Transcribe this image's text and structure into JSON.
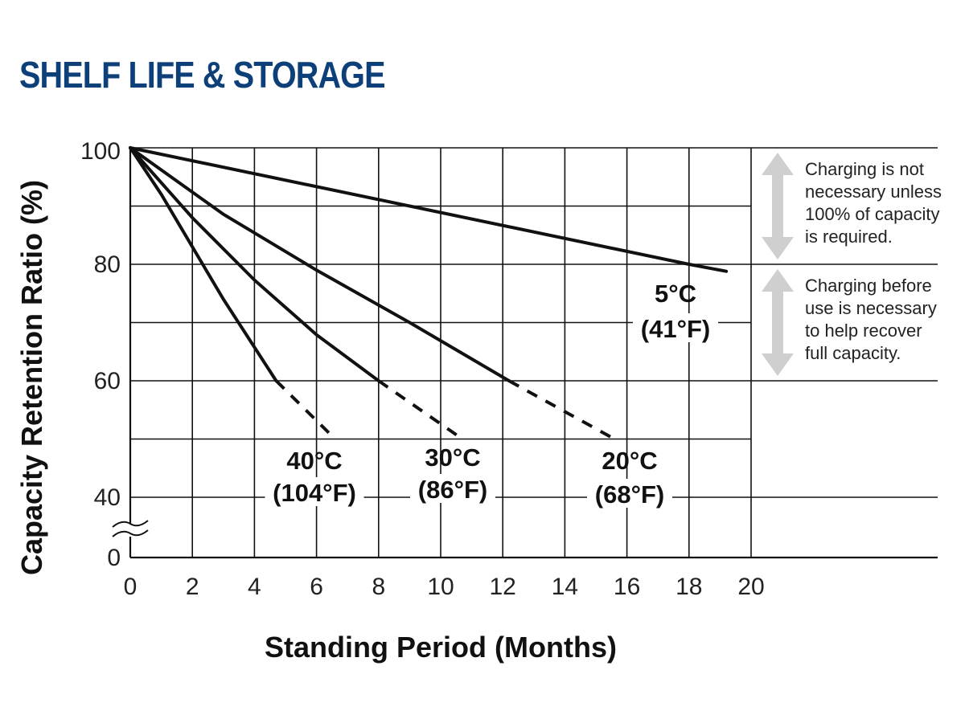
{
  "page": {
    "title": "SHELF LIFE & STORAGE",
    "title_color": "#0d3f78"
  },
  "chart_data": {
    "type": "line",
    "xlabel": "Standing Period (Months)",
    "ylabel": "Capacity Retention Ratio (%)",
    "x_ticks": [
      "0",
      "2",
      "4",
      "6",
      "8",
      "10",
      "12",
      "14",
      "16",
      "18",
      "20"
    ],
    "y_ticks": [
      "0",
      "40",
      "60",
      "80",
      "100"
    ],
    "xlim": [
      0,
      20
    ],
    "ylim": [
      40,
      100
    ],
    "y_axis_break": true,
    "grid": true,
    "series": [
      {
        "name": "5°C (41°F)",
        "label_line1": "5°C",
        "label_line2": "(41°F)",
        "solid": [
          [
            0,
            100
          ],
          [
            18,
            80
          ],
          [
            19.2,
            78.8
          ]
        ],
        "dashed": []
      },
      {
        "name": "20°C (68°F)",
        "label_line1": "20°C",
        "label_line2": "(68°F)",
        "solid": [
          [
            0,
            100
          ],
          [
            3,
            88.6
          ],
          [
            6,
            79
          ],
          [
            9,
            70
          ],
          [
            12.2,
            60
          ]
        ],
        "dashed": [
          [
            12.2,
            60
          ],
          [
            15.6,
            50
          ]
        ]
      },
      {
        "name": "30°C (86°F)",
        "label_line1": "30°C",
        "label_line2": "(86°F)",
        "solid": [
          [
            0,
            100
          ],
          [
            2,
            88
          ],
          [
            4,
            77.3
          ],
          [
            6,
            67.9
          ],
          [
            8,
            60
          ]
        ],
        "dashed": [
          [
            8,
            60
          ],
          [
            10.7,
            50
          ]
        ]
      },
      {
        "name": "40°C (104°F)",
        "label_line1": "40°C",
        "label_line2": "(104°F)",
        "solid": [
          [
            0,
            100
          ],
          [
            1,
            92
          ],
          [
            2,
            83
          ],
          [
            3,
            74
          ],
          [
            4.7,
            60
          ]
        ],
        "dashed": [
          [
            4.7,
            60
          ],
          [
            6.6,
            50
          ]
        ]
      }
    ],
    "zones": [
      {
        "y_range": [
          80,
          100
        ],
        "lines": [
          "Charging is not",
          "necessary unless",
          "100% of capacity",
          "is required."
        ]
      },
      {
        "y_range": [
          60,
          80
        ],
        "lines": [
          "Charging before",
          "use is necessary",
          "to help recover",
          "full capacity."
        ]
      }
    ]
  }
}
